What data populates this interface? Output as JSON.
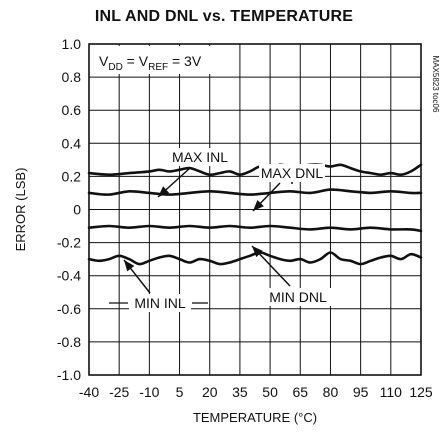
{
  "chart_data": {
    "type": "line",
    "title": "INL AND DNL vs. TEMPERATURE",
    "xlabel": "TEMPERATURE (°C)",
    "ylabel": "ERROR (LSB)",
    "xlim": [
      -40,
      125
    ],
    "ylim": [
      -1.0,
      1.0
    ],
    "x_ticks": [
      "-40",
      "-25",
      "-10",
      "5",
      "20",
      "35",
      "50",
      "65",
      "80",
      "95",
      "110",
      "125"
    ],
    "y_ticks": [
      "1.0",
      "0.8",
      "0.6",
      "0.4",
      "0.2",
      "0",
      "-0.2",
      "-0.4",
      "-0.6",
      "-0.8",
      "-1.0"
    ],
    "grid": true,
    "condition": {
      "v1": "V",
      "s1": "DD",
      "eq1": " = V",
      "s2": "REF",
      "eq2": " = 3V"
    },
    "side_note": "MAX5823 toc06",
    "series": [
      {
        "name": "MAX INL",
        "x": [
          -40,
          -30,
          -20,
          -10,
          -5,
          0,
          5,
          10,
          15,
          20,
          25,
          30,
          35,
          40,
          45,
          50,
          55,
          60,
          65,
          70,
          75,
          80,
          85,
          90,
          95,
          100,
          105,
          110,
          115,
          120,
          125
        ],
        "y": [
          0.22,
          0.21,
          0.22,
          0.23,
          0.24,
          0.23,
          0.24,
          0.25,
          0.23,
          0.21,
          0.22,
          0.23,
          0.21,
          0.23,
          0.26,
          0.25,
          0.27,
          0.26,
          0.26,
          0.27,
          0.27,
          0.26,
          0.27,
          0.25,
          0.23,
          0.22,
          0.21,
          0.22,
          0.21,
          0.23,
          0.27
        ]
      },
      {
        "name": "MAX DNL",
        "x": [
          -40,
          -30,
          -20,
          -10,
          0,
          10,
          20,
          30,
          40,
          50,
          60,
          70,
          80,
          90,
          100,
          110,
          120,
          125
        ],
        "y": [
          0.1,
          0.09,
          0.11,
          0.1,
          0.09,
          0.1,
          0.11,
          0.1,
          0.09,
          0.1,
          0.11,
          0.1,
          0.12,
          0.11,
          0.1,
          0.11,
          0.1,
          0.1
        ]
      },
      {
        "name": "MIN DNL",
        "x": [
          -40,
          -30,
          -20,
          -10,
          0,
          10,
          20,
          30,
          40,
          50,
          60,
          70,
          80,
          90,
          100,
          110,
          120,
          125
        ],
        "y": [
          -0.11,
          -0.1,
          -0.11,
          -0.1,
          -0.11,
          -0.1,
          -0.11,
          -0.1,
          -0.11,
          -0.1,
          -0.11,
          -0.12,
          -0.11,
          -0.12,
          -0.11,
          -0.12,
          -0.12,
          -0.13
        ]
      },
      {
        "name": "MIN INL",
        "x": [
          -40,
          -35,
          -30,
          -25,
          -20,
          -15,
          -10,
          -5,
          0,
          5,
          10,
          15,
          20,
          25,
          30,
          35,
          40,
          45,
          50,
          55,
          60,
          65,
          70,
          75,
          80,
          85,
          90,
          95,
          100,
          105,
          110,
          115,
          120,
          125
        ],
        "y": [
          -0.3,
          -0.31,
          -0.3,
          -0.28,
          -0.3,
          -0.33,
          -0.31,
          -0.29,
          -0.28,
          -0.3,
          -0.32,
          -0.3,
          -0.31,
          -0.33,
          -0.32,
          -0.3,
          -0.28,
          -0.26,
          -0.28,
          -0.3,
          -0.31,
          -0.3,
          -0.32,
          -0.3,
          -0.26,
          -0.3,
          -0.31,
          -0.33,
          -0.31,
          -0.29,
          -0.28,
          -0.3,
          -0.27,
          -0.29
        ]
      }
    ],
    "annotations": [
      {
        "text": "MAX INL",
        "series": "MAX INL"
      },
      {
        "text": "MAX DNL",
        "series": "MAX DNL"
      },
      {
        "text": "MIN DNL",
        "series": "MIN DNL"
      },
      {
        "text": "MIN INL",
        "series": "MIN INL"
      }
    ]
  }
}
